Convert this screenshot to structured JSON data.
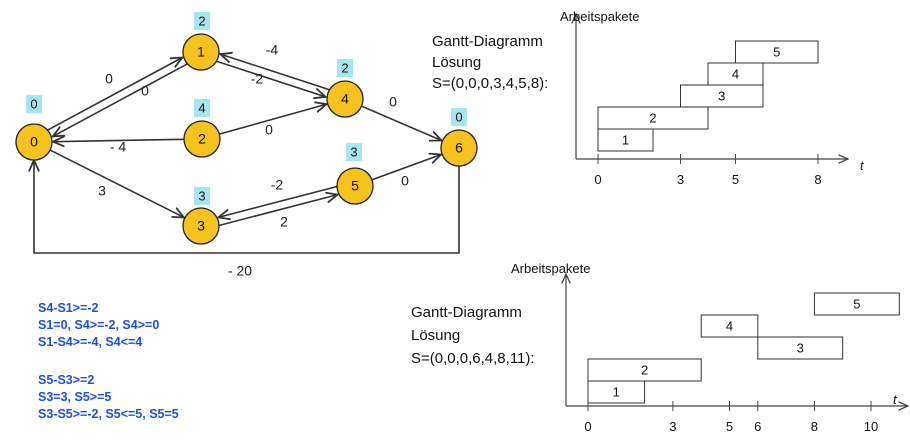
{
  "graph": {
    "nodes": [
      {
        "id": "0",
        "tag": "0"
      },
      {
        "id": "1",
        "tag": "2"
      },
      {
        "id": "2",
        "tag": "4"
      },
      {
        "id": "3",
        "tag": "3"
      },
      {
        "id": "4",
        "tag": "2"
      },
      {
        "id": "5",
        "tag": "3"
      },
      {
        "id": "6",
        "tag": "0"
      }
    ],
    "edges": [
      {
        "from": "0",
        "to": "1",
        "label": "0"
      },
      {
        "from": "1",
        "to": "0",
        "label": "0"
      },
      {
        "from": "1",
        "to": "4",
        "label": "-2"
      },
      {
        "from": "4",
        "to": "1",
        "label": "-4"
      },
      {
        "from": "2",
        "to": "0",
        "label": "- 4"
      },
      {
        "from": "2",
        "to": "4",
        "label": "0"
      },
      {
        "from": "4",
        "to": "6",
        "label": "0"
      },
      {
        "from": "0",
        "to": "3",
        "label": "3"
      },
      {
        "from": "3",
        "to": "5",
        "label": "2"
      },
      {
        "from": "5",
        "to": "3",
        "label": "-2"
      },
      {
        "from": "5",
        "to": "6",
        "label": "0"
      },
      {
        "from": "6",
        "to": "0",
        "label": "- 20"
      }
    ]
  },
  "gantt_top": {
    "heading_lines": [
      "Gantt-Diagramm",
      "Lösung",
      "S=(0,0,0,3,4,5,8):"
    ],
    "ylabel": "Arbeitspakete",
    "tlabel": "t",
    "ticks": [
      "0",
      "3",
      "5",
      "8"
    ],
    "bars": [
      {
        "label": "1",
        "start": 0,
        "end": 2
      },
      {
        "label": "2",
        "start": 0,
        "end": 4
      },
      {
        "label": "3",
        "start": 3,
        "end": 6
      },
      {
        "label": "4",
        "start": 4,
        "end": 6
      },
      {
        "label": "5",
        "start": 5,
        "end": 8
      }
    ]
  },
  "gantt_bottom": {
    "heading_lines": [
      "Gantt-Diagramm",
      "Lösung",
      "S=(0,0,0,6,4,8,11):"
    ],
    "ylabel": "Arbeitspakete",
    "tlabel": "t",
    "ticks": [
      "0",
      "3",
      "5",
      "6",
      "8",
      "10"
    ],
    "bars": [
      {
        "label": "1",
        "start": 0,
        "end": 2
      },
      {
        "label": "2",
        "start": 0,
        "end": 4
      },
      {
        "label": "3",
        "start": 6,
        "end": 9
      },
      {
        "label": "4",
        "start": 4,
        "end": 6
      },
      {
        "label": "5",
        "start": 8,
        "end": 11
      }
    ]
  },
  "constraints": {
    "group1": [
      "S4-S1>=-2",
      "S1=0, S4>=-2, S4>=0",
      "S1-S4>=-4, S4<=4"
    ],
    "group2": [
      "S5-S3>=2",
      "S3=3, S5>=5",
      "S3-S5>=-2, S5<=5, S5=5"
    ]
  }
}
